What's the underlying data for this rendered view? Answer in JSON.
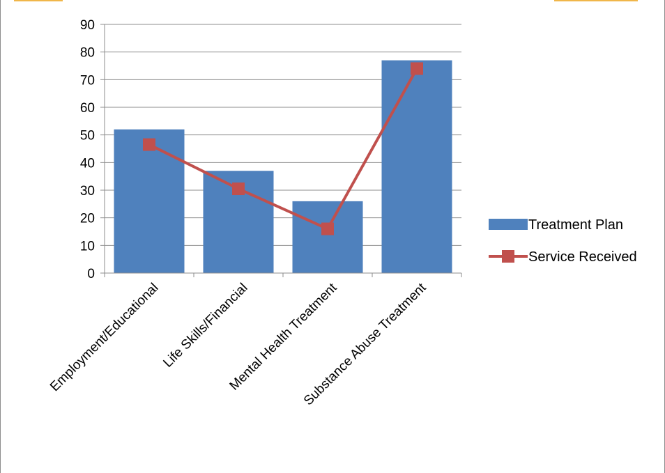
{
  "chart_data": {
    "type": "bar",
    "categories": [
      "Employment/Educational",
      "Life Skills/Financial",
      "Mental Health Treatment",
      "Substance Abuse Treatment"
    ],
    "series": [
      {
        "name": "Treatment Plan",
        "type": "bar",
        "values": [
          52,
          37,
          26,
          77
        ],
        "color": "#4f81bd"
      },
      {
        "name": "Service Received",
        "type": "line",
        "values": [
          46.5,
          30.5,
          16,
          74
        ],
        "color": "#c0504d"
      }
    ],
    "yticks": [
      "0",
      "10",
      "20",
      "30",
      "40",
      "50",
      "60",
      "70",
      "80",
      "90"
    ],
    "ylim": [
      0,
      90
    ],
    "grid": true,
    "legend": "right"
  }
}
